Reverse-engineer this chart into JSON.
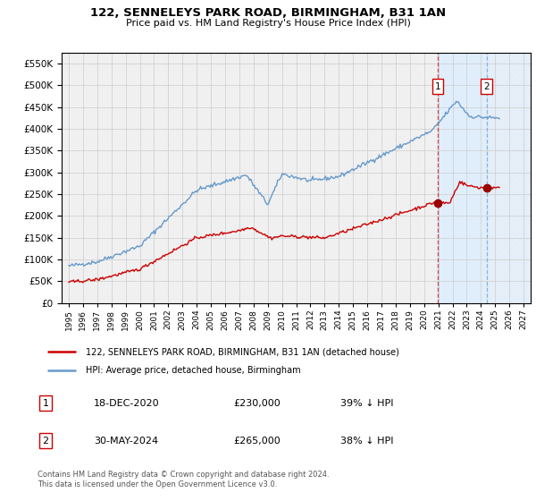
{
  "title": "122, SENNELEYS PARK ROAD, BIRMINGHAM, B31 1AN",
  "subtitle": "Price paid vs. HM Land Registry's House Price Index (HPI)",
  "legend_line1": "122, SENNELEYS PARK ROAD, BIRMINGHAM, B31 1AN (detached house)",
  "legend_line2": "HPI: Average price, detached house, Birmingham",
  "annotation1_label": "1",
  "annotation1_date": "18-DEC-2020",
  "annotation1_price": "£230,000",
  "annotation1_hpi": "39% ↓ HPI",
  "annotation2_label": "2",
  "annotation2_date": "30-MAY-2024",
  "annotation2_price": "£265,000",
  "annotation2_hpi": "38% ↓ HPI",
  "copyright": "Contains HM Land Registry data © Crown copyright and database right 2024.\nThis data is licensed under the Open Government Licence v3.0.",
  "red_line_color": "#cc0000",
  "blue_line_color": "#6699cc",
  "marker_color": "#990000",
  "vline1_color": "#cc0000",
  "vline2_color": "#6699cc",
  "shade_color": "#ddeeff",
  "hatch_color": "#aabbcc",
  "grid_color": "#cccccc",
  "bg_color": "#f0f0f0",
  "ylim": [
    0,
    575000
  ],
  "yticks": [
    0,
    50000,
    100000,
    150000,
    200000,
    250000,
    300000,
    350000,
    400000,
    450000,
    500000,
    550000
  ],
  "xlim_start": 1994.5,
  "xlim_end": 2027.5,
  "sale1_x": 2020.96,
  "sale1_y": 230000,
  "sale2_x": 2024.41,
  "sale2_y": 265000
}
